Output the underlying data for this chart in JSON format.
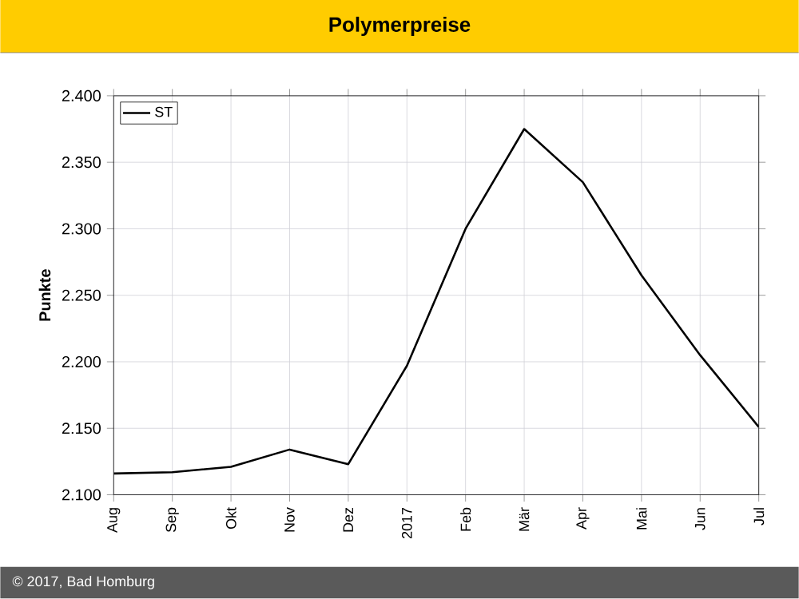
{
  "chart_data": {
    "type": "line",
    "title": "Polymerpreise",
    "ylabel": "Punkte",
    "categories": [
      "Aug",
      "Sep",
      "Okt",
      "Nov",
      "Dez",
      "2017",
      "Feb",
      "Mär",
      "Apr",
      "Mai",
      "Jun",
      "Jul"
    ],
    "series": [
      {
        "name": "ST",
        "color": "#000000",
        "values": [
          2116,
          2117,
          2121,
          2134,
          2123,
          2197,
          2300,
          2375,
          2335,
          2265,
          2205,
          2151
        ]
      }
    ],
    "ylim": [
      2100,
      2400
    ],
    "yticks": [
      {
        "value": 2100,
        "label": "2.100"
      },
      {
        "value": 2150,
        "label": "2.150"
      },
      {
        "value": 2200,
        "label": "2.200"
      },
      {
        "value": 2250,
        "label": "2.250"
      },
      {
        "value": 2300,
        "label": "2.300"
      },
      {
        "value": 2350,
        "label": "2.350"
      },
      {
        "value": 2400,
        "label": "2.400"
      }
    ],
    "grid": true,
    "legend": "top left",
    "marker": "none",
    "line_style": "solid",
    "annotations": [
      "© 2017, Bad Homburg"
    ]
  }
}
